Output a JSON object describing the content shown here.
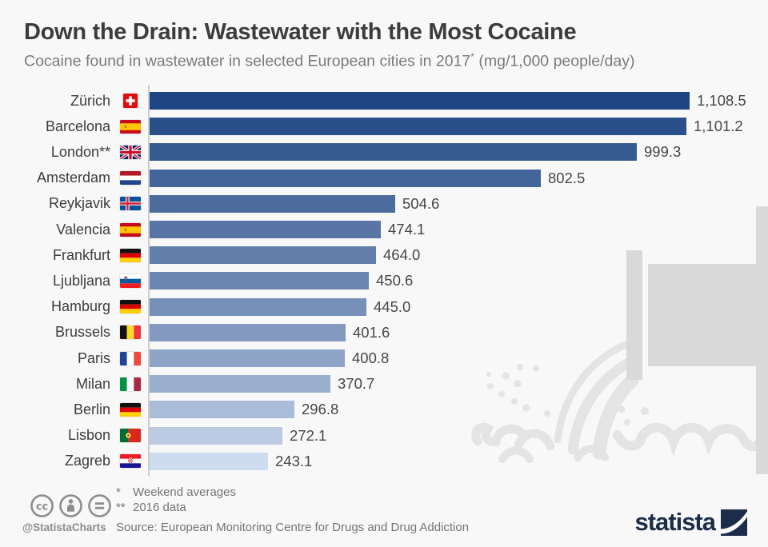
{
  "header": {
    "title": "Down the Drain: Wastewater with the Most Cocaine",
    "subtitle_pre": "Cocaine found in wastewater in selected European cities in 2017",
    "subtitle_sup": "*",
    "subtitle_post": " (mg/1,000 people/day)"
  },
  "chart_data": {
    "type": "bar",
    "orientation": "horizontal",
    "unit": "mg/1,000 people/day",
    "year": "2017",
    "xlim": [
      0,
      1200
    ],
    "grid": false,
    "legend": false,
    "categories": [
      "Zürich",
      "Barcelona",
      "London**",
      "Amsterdam",
      "Reykjavik",
      "Valencia",
      "Frankfurt",
      "Ljubljana",
      "Hamburg",
      "Brussels",
      "Paris",
      "Milan",
      "Berlin",
      "Lisbon",
      "Zagreb"
    ],
    "values": [
      1108.5,
      1101.2,
      999.3,
      802.5,
      504.6,
      474.1,
      464.0,
      450.6,
      445.0,
      401.6,
      400.8,
      370.7,
      296.8,
      272.1,
      243.1
    ],
    "rows": [
      {
        "city": "Zürich",
        "flag": "switzerland",
        "value": 1108.5,
        "display": "1,108.5",
        "color": "#1d4581"
      },
      {
        "city": "Barcelona",
        "flag": "spain",
        "value": 1101.2,
        "display": "1,101.2",
        "color": "#2a5089"
      },
      {
        "city": "London**",
        "flag": "uk",
        "value": 999.3,
        "display": "999.3",
        "color": "#365b91"
      },
      {
        "city": "Amsterdam",
        "flag": "netherlands",
        "value": 802.5,
        "display": "802.5",
        "color": "#436599"
      },
      {
        "city": "Reykjavik",
        "flag": "iceland",
        "value": 504.6,
        "display": "504.6",
        "color": "#4d6c9e"
      },
      {
        "city": "Valencia",
        "flag": "spain",
        "value": 474.1,
        "display": "474.1",
        "color": "#5875a5"
      },
      {
        "city": "Frankfurt",
        "flag": "germany",
        "value": 464.0,
        "display": "464.0",
        "color": "#627eab"
      },
      {
        "city": "Ljubljana",
        "flag": "slovenia",
        "value": 450.6,
        "display": "450.6",
        "color": "#6c87b2"
      },
      {
        "city": "Hamburg",
        "flag": "germany",
        "value": 445.0,
        "display": "445.0",
        "color": "#7690b8"
      },
      {
        "city": "Brussels",
        "flag": "belgium",
        "value": 401.6,
        "display": "401.6",
        "color": "#8298be"
      },
      {
        "city": "Paris",
        "flag": "france",
        "value": 400.8,
        "display": "400.8",
        "color": "#8ea4c6"
      },
      {
        "city": "Milan",
        "flag": "italy",
        "value": 370.7,
        "display": "370.7",
        "color": "#9aaecd"
      },
      {
        "city": "Berlin",
        "flag": "germany",
        "value": 296.8,
        "display": "296.8",
        "color": "#a9bcd8"
      },
      {
        "city": "Lisbon",
        "flag": "portugal",
        "value": 272.1,
        "display": "272.1",
        "color": "#bacbe3"
      },
      {
        "city": "Zagreb",
        "flag": "croatia",
        "value": 243.1,
        "display": "243.1",
        "color": "#cedcf0"
      }
    ],
    "scale_max": 1108.5
  },
  "footer": {
    "handle": "@StatistaCharts",
    "footnote1_marker": "*",
    "footnote1_text": "Weekend averages",
    "footnote2_marker": "**",
    "footnote2_text": "2016 data",
    "source": "Source: European Monitoring Centre for Drugs and Drug Addiction",
    "brand": "statista"
  },
  "icons": {
    "license": [
      "cc-icon",
      "attribution-person-icon",
      "equals-icon"
    ],
    "watermark": "drain-pipe-water-icon",
    "flags": [
      "switzerland",
      "spain",
      "uk",
      "netherlands",
      "iceland",
      "germany",
      "slovenia",
      "belgium",
      "france",
      "italy",
      "portugal",
      "croatia"
    ]
  },
  "style": {
    "background": "#f8f8f8",
    "bar_dark": "#1d4581",
    "bar_light": "#cedcf0",
    "brand_navy": "#1b2d48",
    "watermark_gray": "#e4e4e4",
    "pipe_gray": "#d9d9d9"
  }
}
